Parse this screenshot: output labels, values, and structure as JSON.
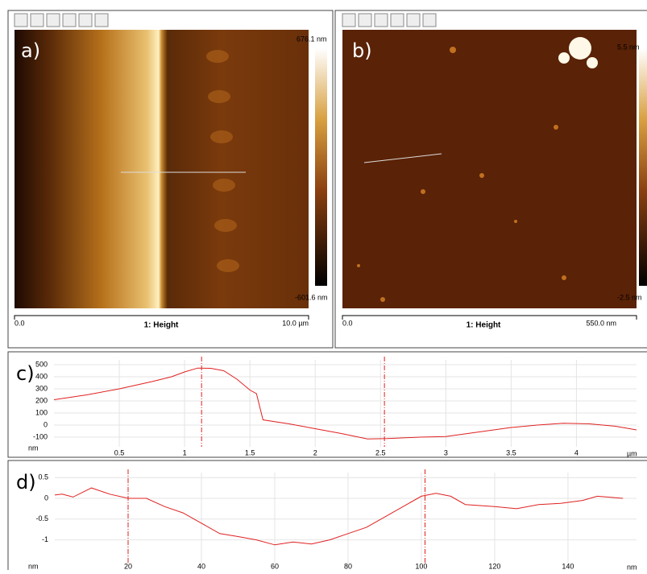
{
  "panels": [
    {
      "label": "a)",
      "scale_max": "676.1 nm",
      "scale_min": "-601.6 nm",
      "axis_start": "0.0",
      "axis_title": "1: Height",
      "axis_end": "10.0 µm"
    },
    {
      "label": "b)",
      "scale_max": "5.5 nm",
      "scale_min": "-2.5 nm",
      "axis_start": "0.0",
      "axis_title": "1: Height",
      "axis_end": "550.0 nm"
    }
  ],
  "chart_data": [
    {
      "type": "line",
      "label": "c)",
      "y_unit": "nm",
      "x_unit": "µm",
      "color": "#e02020",
      "x": [
        0,
        0.25,
        0.5,
        0.75,
        0.9,
        1.0,
        1.1,
        1.2,
        1.3,
        1.4,
        1.5,
        1.55,
        1.6,
        1.8,
        2.0,
        2.2,
        2.4,
        2.55,
        2.8,
        3.0,
        3.3,
        3.5,
        3.7,
        3.9,
        4.1,
        4.3,
        4.46
      ],
      "values": [
        210,
        250,
        300,
        360,
        400,
        440,
        472,
        470,
        450,
        380,
        290,
        260,
        43,
        10,
        -30,
        -70,
        -115,
        -112,
        -100,
        -95,
        -50,
        -20,
        0,
        15,
        10,
        -10,
        -40
      ],
      "cursors": [
        1.13,
        2.53
      ],
      "xlim": [
        0,
        4.46
      ],
      "ylim": [
        -180,
        540
      ],
      "xticks": [
        0.5,
        1,
        1.5,
        2,
        2.5,
        3,
        3.5,
        4
      ],
      "yticks": [
        500,
        400,
        300,
        200,
        100,
        0,
        -100
      ],
      "grid": true
    },
    {
      "type": "line",
      "label": "d)",
      "y_unit": "nm",
      "x_unit": "nm",
      "color": "#e02020",
      "x": [
        0,
        2,
        5,
        10,
        15,
        20,
        25,
        30,
        35,
        40,
        45,
        50,
        55,
        60,
        65,
        70,
        75,
        80,
        85,
        90,
        95,
        100,
        104,
        108,
        112,
        120,
        126,
        132,
        138,
        144,
        148,
        155
      ],
      "values": [
        0.08,
        0.1,
        0.03,
        0.25,
        0.1,
        0,
        0,
        -0.2,
        -0.35,
        -0.6,
        -0.85,
        -0.92,
        -1.0,
        -1.12,
        -1.05,
        -1.1,
        -1.0,
        -0.85,
        -0.7,
        -0.45,
        -0.2,
        0.05,
        0.12,
        0.05,
        -0.15,
        -0.2,
        -0.25,
        -0.15,
        -0.12,
        -0.05,
        0.05,
        0
      ],
      "cursors": [
        20,
        101
      ],
      "xlim": [
        0,
        158.7
      ],
      "ylim": [
        -1.57,
        0.62
      ],
      "xticks": [
        20,
        40,
        60,
        80,
        100,
        120,
        140
      ],
      "yticks": [
        0.5,
        0,
        -0.5,
        -1
      ],
      "grid": true
    }
  ]
}
